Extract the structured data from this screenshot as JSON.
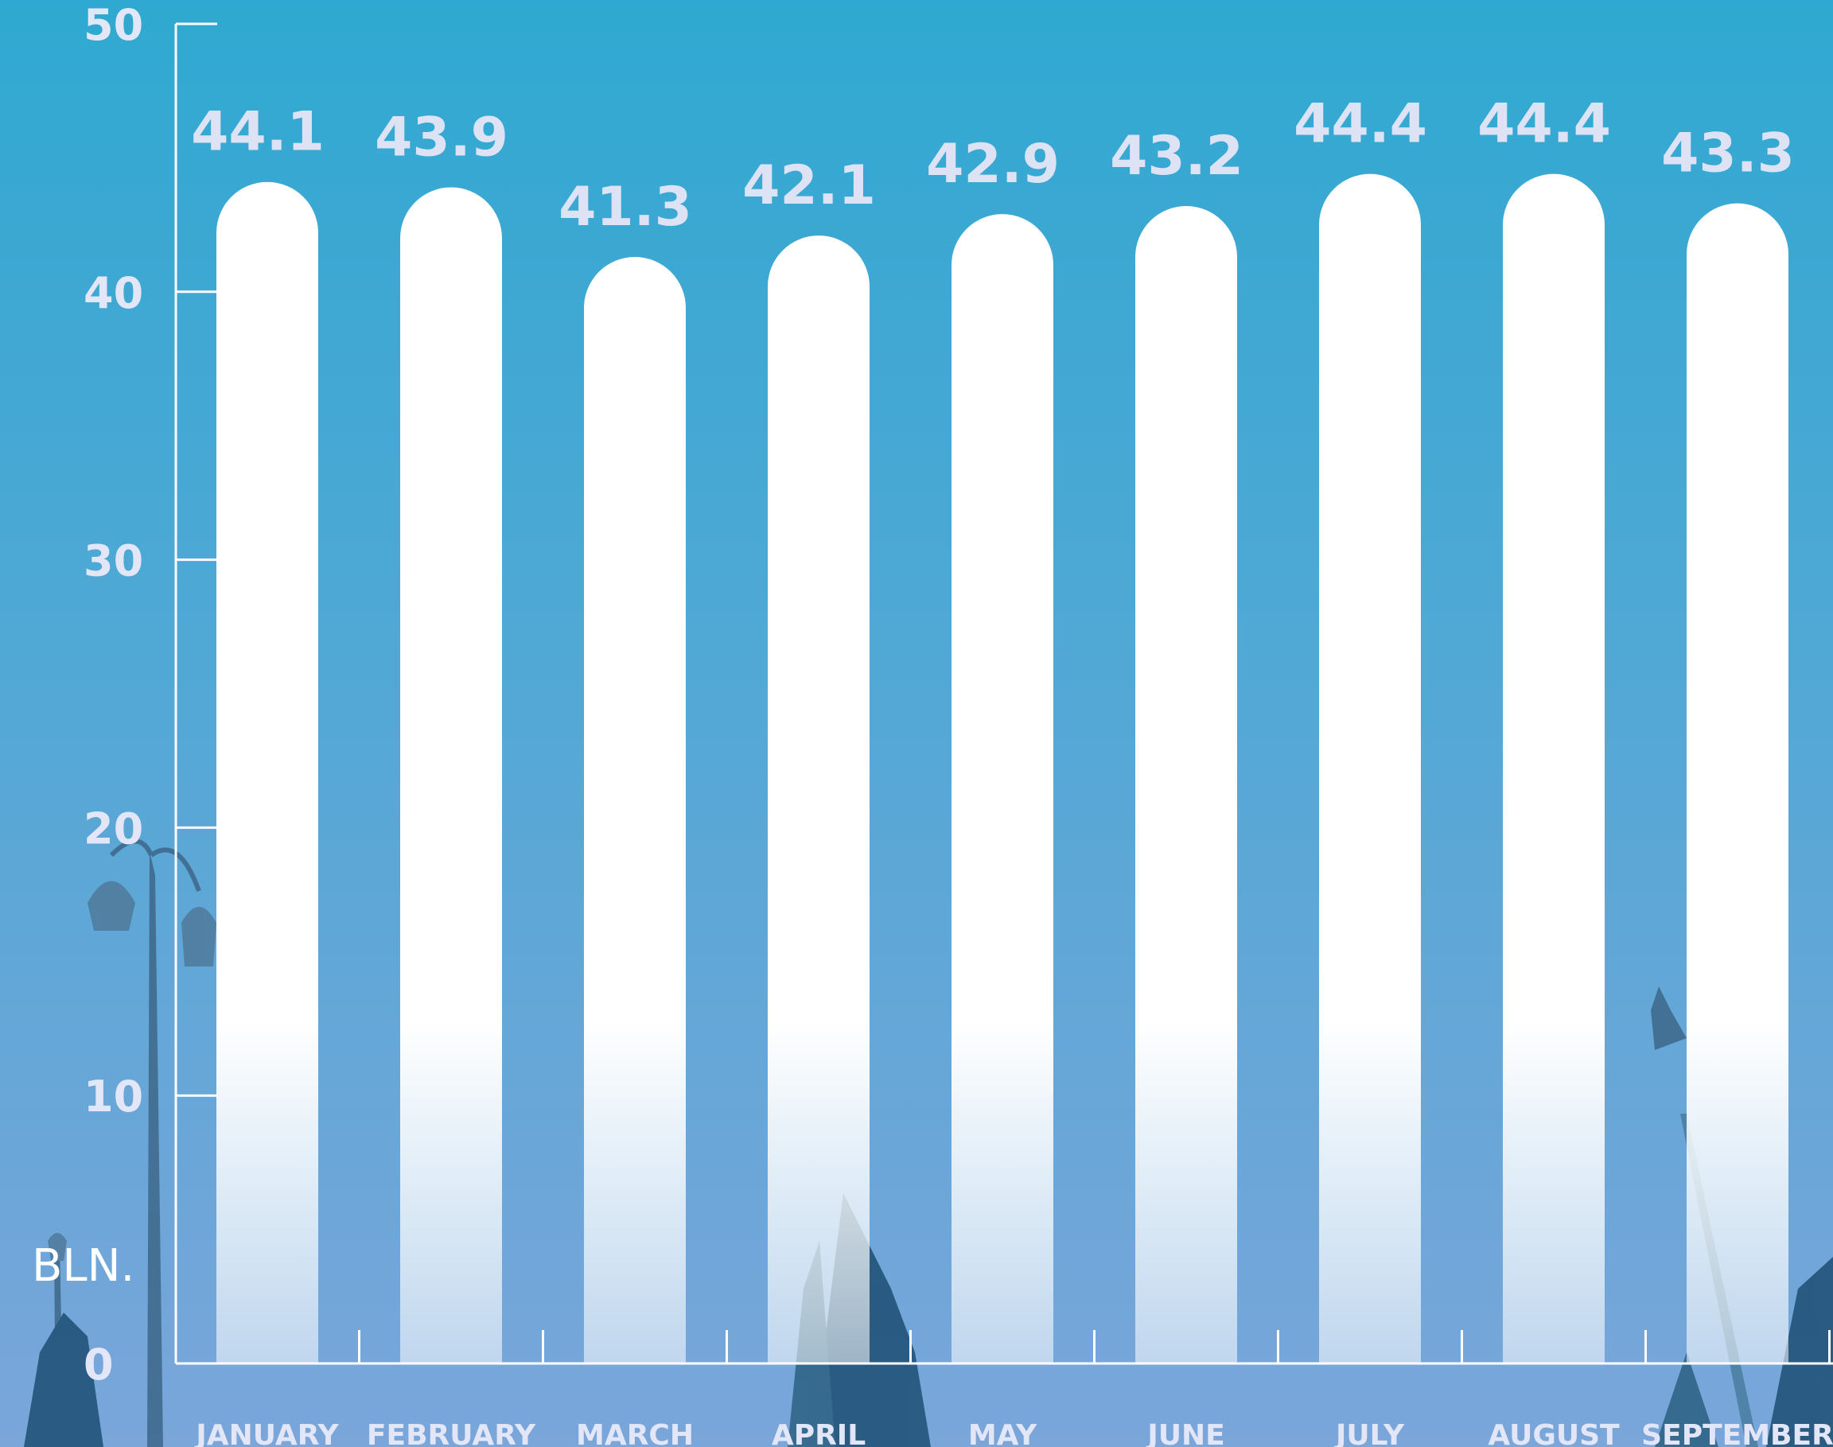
{
  "chart_data": {
    "type": "bar",
    "categories": [
      "JANUARY",
      "FEBRUARY",
      "MARCH",
      "APRIL",
      "MAY",
      "JUNE",
      "JULY",
      "AUGUST",
      "SEPTEMBER"
    ],
    "values": [
      44.1,
      43.9,
      41.3,
      42.1,
      42.9,
      43.2,
      44.4,
      44.4,
      43.3
    ],
    "value_labels": [
      "44.1",
      "43.9",
      "41.3",
      "42.1",
      "42.9",
      "43.2",
      "44.4",
      "44.4",
      "43.3"
    ],
    "y_ticks": [
      0,
      10,
      20,
      30,
      40,
      50
    ],
    "ylim": [
      0,
      50
    ],
    "ylabel": "BLN.",
    "xlabel": "",
    "title": "",
    "grid": false,
    "colors": {
      "background_top": "#2fa9d1",
      "background_bottom": "#7aa6da",
      "bar": "#ffffff",
      "text": "#e3e6f7",
      "axis": "#ffffff"
    }
  }
}
